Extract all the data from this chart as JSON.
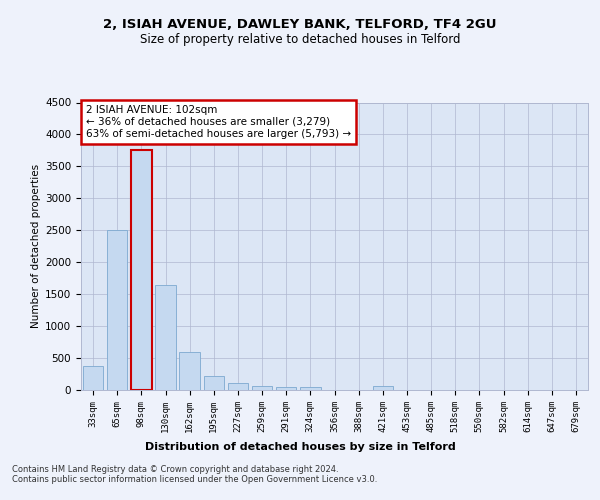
{
  "title1": "2, ISIAH AVENUE, DAWLEY BANK, TELFORD, TF4 2GU",
  "title2": "Size of property relative to detached houses in Telford",
  "xlabel": "Distribution of detached houses by size in Telford",
  "ylabel": "Number of detached properties",
  "categories": [
    "33sqm",
    "65sqm",
    "98sqm",
    "130sqm",
    "162sqm",
    "195sqm",
    "227sqm",
    "259sqm",
    "291sqm",
    "324sqm",
    "356sqm",
    "388sqm",
    "421sqm",
    "453sqm",
    "485sqm",
    "518sqm",
    "550sqm",
    "582sqm",
    "614sqm",
    "647sqm",
    "679sqm"
  ],
  "values": [
    370,
    2500,
    3750,
    1640,
    590,
    225,
    105,
    65,
    45,
    40,
    0,
    0,
    65,
    0,
    0,
    0,
    0,
    0,
    0,
    0,
    0
  ],
  "bar_color": "#c5d9f0",
  "bar_edge_color": "#7da9d0",
  "highlight_bar_index": 2,
  "highlight_edge_color": "#cc0000",
  "annotation_text": "2 ISIAH AVENUE: 102sqm\n← 36% of detached houses are smaller (3,279)\n63% of semi-detached houses are larger (5,793) →",
  "annotation_box_color": "#ffffff",
  "annotation_box_edge": "#cc0000",
  "ylim": [
    0,
    4500
  ],
  "yticks": [
    0,
    500,
    1000,
    1500,
    2000,
    2500,
    3000,
    3500,
    4000,
    4500
  ],
  "footer": "Contains HM Land Registry data © Crown copyright and database right 2024.\nContains public sector information licensed under the Open Government Licence v3.0.",
  "bg_color": "#eef2fb",
  "plot_bg_color": "#dce6f5"
}
